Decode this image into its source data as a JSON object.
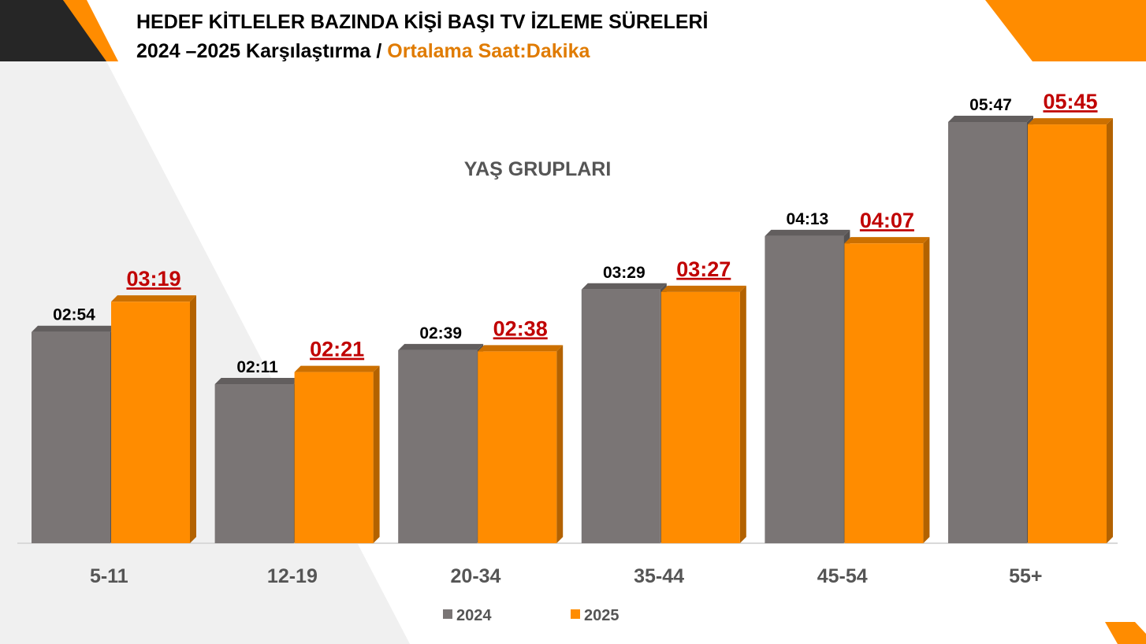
{
  "chart_data": {
    "type": "bar3d",
    "title": "HEDEF KİTLELER BAZINDA KİŞİ BAŞI TV İZLEME SÜRELERİ",
    "subtitle": "2024 –2025 Karşılaştırma / ",
    "subtitle_highlight": "Ortalama Saat:Dakika",
    "annotation": "YAŞ GRUPLARI",
    "categories": [
      "5-11",
      "12-19",
      "20-34",
      "35-44",
      "45-54",
      "55+"
    ],
    "series": [
      {
        "name": "2024",
        "color": "#7a7575",
        "values": [
          174,
          131,
          159,
          209,
          253,
          347
        ],
        "value_labels": [
          "02:54",
          "02:11",
          "02:39",
          "03:29",
          "04:13",
          "05:47"
        ]
      },
      {
        "name": "2025",
        "color": "#ff8c00",
        "values": [
          199,
          141,
          158,
          207,
          247,
          345
        ],
        "value_labels": [
          "03:19",
          "02:21",
          "02:38",
          "03:27",
          "04:07",
          "05:45"
        ]
      }
    ]
  }
}
